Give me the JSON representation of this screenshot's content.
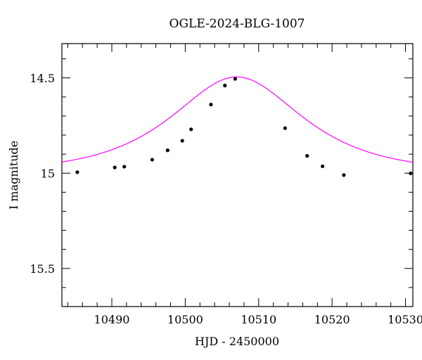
{
  "chart_data": {
    "type": "scatter",
    "title": "OGLE-2024-BLG-1007",
    "xlabel": "HJD - 2450000",
    "ylabel": "I magnitude",
    "xlim": [
      10483.2,
      10531.0
    ],
    "ylim": [
      15.7,
      14.32
    ],
    "y_inverted": true,
    "grid": false,
    "x_ticks": [
      10490,
      10500,
      10510,
      10520,
      10530
    ],
    "x_tick_labels": [
      "10490",
      "10500",
      "10510",
      "10520",
      "10530"
    ],
    "y_ticks": [
      14.5,
      15,
      15.5
    ],
    "y_tick_labels": [
      "14.5",
      "15",
      "15.5"
    ],
    "series": [
      {
        "type": "scatter",
        "color": "#000000",
        "x": [
          10485.3,
          10490.4,
          10491.7,
          10495.5,
          10497.6,
          10499.6,
          10500.8,
          10503.5,
          10505.4,
          10506.8,
          10513.6,
          10516.6,
          10518.7,
          10521.6,
          10530.7
        ],
        "y": [
          14.995,
          14.97,
          14.966,
          14.929,
          14.88,
          14.83,
          14.77,
          14.64,
          14.54,
          14.505,
          14.764,
          14.909,
          14.964,
          15.01,
          15.001
        ]
      },
      {
        "type": "line",
        "color": "#ff00ff",
        "model": "paczynski",
        "params": {
          "t0": 10507.0,
          "tE": 12.0,
          "u0": 0.8,
          "I_base": 15.0,
          "peak_mag": 14.495
        }
      }
    ]
  }
}
